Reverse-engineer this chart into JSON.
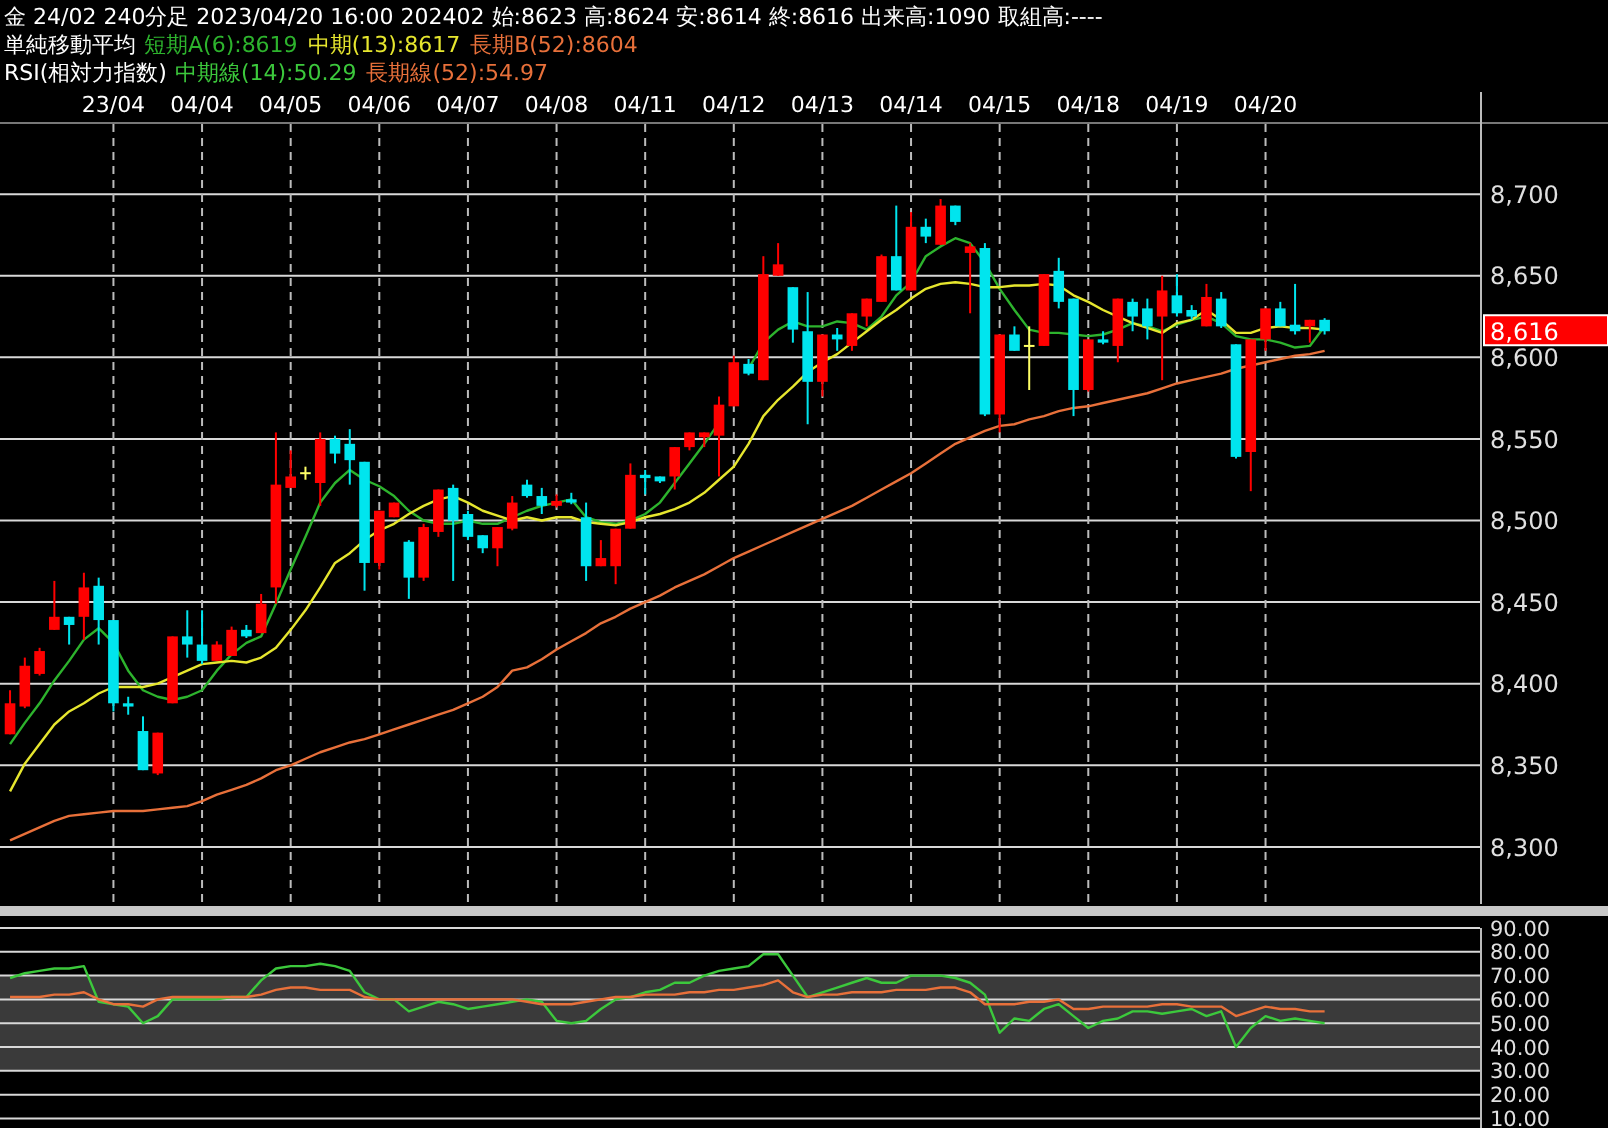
{
  "chart_data": [
    {
      "type": "candlestick",
      "title": "金 24/02 240分足 2023/04/20 16:00 202402 始:8623 高:8624 安:8614 終:8616 出来高:1090 取組高:----",
      "legend_title": "単純移動平均",
      "legend": "top left",
      "grid": true,
      "categories": [
        null,
        null,
        null,
        null,
        null,
        null,
        null,
        "23/04",
        null,
        null,
        null,
        null,
        null,
        "04/04",
        null,
        null,
        null,
        null,
        null,
        "04/05",
        null,
        null,
        null,
        null,
        null,
        "04/06",
        null,
        null,
        null,
        null,
        null,
        "04/07",
        null,
        null,
        null,
        null,
        null,
        "04/08",
        null,
        null,
        null,
        null,
        null,
        "04/11",
        null,
        null,
        null,
        null,
        null,
        "04/12",
        null,
        null,
        null,
        null,
        null,
        "04/13",
        null,
        null,
        null,
        null,
        null,
        "04/14",
        null,
        null,
        null,
        null,
        null,
        "04/15",
        null,
        null,
        null,
        null,
        null,
        "04/18",
        null,
        null,
        null,
        null,
        null,
        "04/19",
        null,
        null,
        null,
        null,
        null,
        "04/20",
        null,
        null,
        null,
        null
      ],
      "ohlc": [
        [
          8369,
          8396,
          8369,
          8388
        ],
        [
          8386,
          8416,
          8385,
          8411
        ],
        [
          8406,
          8422,
          8405,
          8420
        ],
        [
          8433,
          8463,
          8433,
          8441
        ],
        [
          8441,
          8441,
          8424,
          8436
        ],
        [
          8441,
          8468,
          8427,
          8459
        ],
        [
          8460,
          8465,
          8424,
          8439
        ],
        [
          8439,
          8439,
          8383,
          8388
        ],
        [
          8388,
          8392,
          8381,
          8386
        ],
        [
          8371,
          8380,
          8347,
          8347
        ],
        [
          8345,
          8370,
          8344,
          8370
        ],
        [
          8388,
          8429,
          8388,
          8429
        ],
        [
          8429,
          8445,
          8416,
          8424
        ],
        [
          8424,
          8445,
          8412,
          8414
        ],
        [
          8414,
          8426,
          8414,
          8424
        ],
        [
          8417,
          8435,
          8417,
          8433
        ],
        [
          8433,
          8436,
          8428,
          8429
        ],
        [
          8431,
          8455,
          8431,
          8449
        ],
        [
          8459,
          8554,
          8449,
          8522
        ],
        [
          8520,
          8543,
          8520,
          8527
        ],
        [
          8529,
          8533,
          8525,
          8529
        ],
        [
          8523,
          8554,
          8509,
          8550
        ],
        [
          8550,
          8552,
          8535,
          8541
        ],
        [
          8547,
          8556,
          8522,
          8537
        ],
        [
          8536,
          8536,
          8457,
          8474
        ],
        [
          8474,
          8506,
          8470,
          8506
        ],
        [
          8502,
          8511,
          8502,
          8511
        ],
        [
          8487,
          8488,
          8452,
          8465
        ],
        [
          8465,
          8498,
          8463,
          8496
        ],
        [
          8493,
          8519,
          8490,
          8519
        ],
        [
          8520,
          8522,
          8463,
          8500
        ],
        [
          8504,
          8506,
          8488,
          8490
        ],
        [
          8491,
          8491,
          8480,
          8483
        ],
        [
          8483,
          8496,
          8472,
          8496
        ],
        [
          8495,
          8515,
          8494,
          8511
        ],
        [
          8522,
          8525,
          8514,
          8515
        ],
        [
          8515,
          8520,
          8504,
          8509
        ],
        [
          8509,
          8516,
          8508,
          8512
        ],
        [
          8513,
          8517,
          8510,
          8511
        ],
        [
          8502,
          8511,
          8463,
          8472
        ],
        [
          8472,
          8488,
          8472,
          8477
        ],
        [
          8472,
          8495,
          8461,
          8495
        ],
        [
          8495,
          8535,
          8495,
          8528
        ],
        [
          8528,
          8531,
          8516,
          8526
        ],
        [
          8527,
          8527,
          8523,
          8524
        ],
        [
          8527,
          8545,
          8519,
          8545
        ],
        [
          8545,
          8554,
          8543,
          8554
        ],
        [
          8551,
          8554,
          8545,
          8554
        ],
        [
          8552,
          8576,
          8527,
          8571
        ],
        [
          8570,
          8601,
          8570,
          8597
        ],
        [
          8596,
          8599,
          8589,
          8590
        ],
        [
          8586,
          8662,
          8586,
          8651
        ],
        [
          8650,
          8670,
          8650,
          8657
        ],
        [
          8643,
          8643,
          8609,
          8617
        ],
        [
          8616,
          8640,
          8559,
          8585
        ],
        [
          8585,
          8614,
          8576,
          8614
        ],
        [
          8614,
          8618,
          8604,
          8611
        ],
        [
          8607,
          8627,
          8604,
          8627
        ],
        [
          8625,
          8636,
          8619,
          8636
        ],
        [
          8634,
          8663,
          8634,
          8662
        ],
        [
          8662,
          8693,
          8641,
          8641
        ],
        [
          8641,
          8689,
          8641,
          8680
        ],
        [
          8680,
          8685,
          8670,
          8674
        ],
        [
          8669,
          8697,
          8669,
          8693
        ],
        [
          8693,
          8693,
          8681,
          8683
        ],
        [
          8664,
          8670,
          8627,
          8668
        ],
        [
          8667,
          8670,
          8564,
          8565
        ],
        [
          8565,
          8614,
          8554,
          8614
        ],
        [
          8614,
          8619,
          8604,
          8604
        ],
        [
          8607,
          8619,
          8580,
          8607
        ],
        [
          8607,
          8651,
          8607,
          8651
        ],
        [
          8653,
          8661,
          8630,
          8634
        ],
        [
          8636,
          8636,
          8564,
          8580
        ],
        [
          8580,
          8611,
          8579,
          8611
        ],
        [
          8611,
          8616,
          8608,
          8609
        ],
        [
          8607,
          8636,
          8597,
          8636
        ],
        [
          8634,
          8636,
          8616,
          8625
        ],
        [
          8630,
          8636,
          8611,
          8619
        ],
        [
          8625,
          8650,
          8586,
          8641
        ],
        [
          8638,
          8651,
          8625,
          8627
        ],
        [
          8629,
          8632,
          8623,
          8625
        ],
        [
          8619,
          8645,
          8619,
          8637
        ],
        [
          8636,
          8640,
          8618,
          8619
        ],
        [
          8608,
          8608,
          8538,
          8539
        ],
        [
          8542,
          8611,
          8518,
          8611
        ],
        [
          8611,
          8630,
          8604,
          8630
        ],
        [
          8630,
          8634,
          8619,
          8619
        ],
        [
          8620,
          8645,
          8614,
          8616
        ],
        [
          8619,
          8623,
          8609,
          8623
        ],
        [
          8623,
          8624,
          8614,
          8616
        ]
      ],
      "colors": [
        "#ff0000",
        "#ff0000",
        "#ff0000",
        "#ff0000",
        "#00e5ee",
        "#ff0000",
        "#00e5ee",
        "#00e5ee",
        "#00e5ee",
        "#00e5ee",
        "#ff0000",
        "#ff0000",
        "#00e5ee",
        "#00e5ee",
        "#ff0000",
        "#ff0000",
        "#00e5ee",
        "#ff0000",
        "#ff0000",
        "#ff0000",
        "#ffff66",
        "#ff0000",
        "#00e5ee",
        "#00e5ee",
        "#00e5ee",
        "#ff0000",
        "#ff0000",
        "#00e5ee",
        "#ff0000",
        "#ff0000",
        "#00e5ee",
        "#00e5ee",
        "#00e5ee",
        "#ff0000",
        "#ff0000",
        "#00e5ee",
        "#00e5ee",
        "#ff0000",
        "#00e5ee",
        "#00e5ee",
        "#ff0000",
        "#ff0000",
        "#ff0000",
        "#00e5ee",
        "#00e5ee",
        "#ff0000",
        "#ff0000",
        "#ff0000",
        "#ff0000",
        "#ff0000",
        "#00e5ee",
        "#ff0000",
        "#ff0000",
        "#00e5ee",
        "#00e5ee",
        "#ff0000",
        "#00e5ee",
        "#ff0000",
        "#ff0000",
        "#ff0000",
        "#00e5ee",
        "#ff0000",
        "#00e5ee",
        "#ff0000",
        "#00e5ee",
        "#ff0000",
        "#00e5ee",
        "#ff0000",
        "#00e5ee",
        "#ffff66",
        "#ff0000",
        "#00e5ee",
        "#00e5ee",
        "#ff0000",
        "#00e5ee",
        "#ff0000",
        "#00e5ee",
        "#00e5ee",
        "#ff0000",
        "#00e5ee",
        "#00e5ee",
        "#ff0000",
        "#00e5ee",
        "#00e5ee",
        "#ff0000",
        "#ff0000",
        "#00e5ee",
        "#00e5ee",
        "#ff0000",
        "#00e5ee"
      ],
      "series": [
        {
          "name": "短期A(6):8619",
          "color": "#2db32d",
          "type": "line",
          "values": [
            8363,
            8376,
            8388,
            8402,
            8414,
            8427,
            8434,
            8425,
            8408,
            8396,
            8392,
            8390,
            8392,
            8396,
            8408,
            8418,
            8425,
            8429,
            8449,
            8470,
            8490,
            8511,
            8523,
            8531,
            8525,
            8521,
            8515,
            8506,
            8500,
            8498,
            8498,
            8500,
            8498,
            8498,
            8502,
            8506,
            8509,
            8511,
            8513,
            8502,
            8499,
            8498,
            8500,
            8504,
            8511,
            8523,
            8535,
            8547,
            8560,
            null,
            8593,
            8609,
            8617,
            8622,
            8619,
            8619,
            8622,
            8621,
            8617,
            8625,
            8638,
            8646,
            8662,
            8668,
            8673,
            8670,
            8658,
            8642,
            8629,
            8617,
            8615,
            8615,
            8614,
            8613,
            8614,
            8617,
            8621,
            8619,
            8616,
            8620,
            8623,
            8625,
            8621,
            8613,
            8611,
            8611,
            8609,
            8606,
            8607,
            8619
          ]
        },
        {
          "name": "中期(13):8617",
          "color": "#e6e62e",
          "type": "line",
          "values": [
            8334,
            8351,
            8363,
            8375,
            8383,
            8388,
            8394,
            8398,
            8398,
            8398,
            8400,
            8404,
            8408,
            8412,
            8413,
            8414,
            8413,
            8416,
            8422,
            8433,
            8445,
            8459,
            8474,
            8480,
            8488,
            8494,
            8498,
            8504,
            8509,
            8513,
            8515,
            8511,
            8506,
            8503,
            8500,
            8502,
            8500,
            8502,
            8502,
            8499,
            8498,
            8497,
            8499,
            8502,
            8504,
            8507,
            8511,
            8517,
            8525,
            8533,
            8547,
            8564,
            8574,
            8582,
            8591,
            8597,
            8602,
            8609,
            8616,
            8623,
            8629,
            8636,
            8642,
            8645,
            8646,
            8645,
            8643,
            8643,
            8644,
            8644,
            8645,
            8644,
            8638,
            8634,
            8629,
            8625,
            8621,
            8618,
            8615,
            8621,
            8623,
            8629,
            8623,
            8615,
            8615,
            8618,
            8619,
            8618,
            8618,
            8617
          ]
        },
        {
          "name": "長期B(52):8604",
          "color": "#e8703a",
          "type": "line",
          "values": [
            8304,
            8308,
            8312,
            8316,
            8319,
            8320,
            8321,
            8322,
            8322,
            8322,
            8323,
            8324,
            8325,
            8328,
            8332,
            8335,
            8338,
            8342,
            8347,
            8350,
            8354,
            8358,
            8361,
            8364,
            8366,
            8369,
            8372,
            8375,
            8378,
            8381,
            8384,
            8388,
            8392,
            8398,
            8408,
            8410,
            8415,
            8421,
            8426,
            8431,
            8437,
            8441,
            8446,
            8450,
            8454,
            8459,
            8463,
            8467,
            8472,
            8477,
            8481,
            8485,
            8489,
            8493,
            8497,
            8501,
            8505,
            8509,
            8514,
            8519,
            8524,
            8529,
            8535,
            8541,
            8547,
            8551,
            8555,
            8558,
            8559,
            8562,
            8564,
            8567,
            8569,
            8570,
            8572,
            8574,
            8576,
            8578,
            8581,
            8584,
            8586,
            8588,
            8590,
            8593,
            8595,
            8597,
            8599,
            8601,
            8602,
            8604
          ]
        }
      ],
      "ylim": [
        8265,
        8743
      ],
      "yticks": [
        {
          "value": 8300,
          "label": "8,300"
        },
        {
          "value": 8350,
          "label": "8,350"
        },
        {
          "value": 8400,
          "label": "8,400"
        },
        {
          "value": 8450,
          "label": "8,450"
        },
        {
          "value": 8500,
          "label": "8,500"
        },
        {
          "value": 8550,
          "label": "8,550"
        },
        {
          "value": 8600,
          "label": "8,600"
        },
        {
          "value": 8650,
          "label": "8,650"
        },
        {
          "value": 8700,
          "label": "8,700"
        }
      ],
      "annotations": [
        "8,616"
      ]
    },
    {
      "type": "line",
      "legend_title": "RSI(相対力指数)",
      "legend": "top left",
      "grid": true,
      "tick_labels": "y",
      "categories": [
        null,
        null,
        null,
        null,
        null,
        null,
        null,
        null,
        null,
        null,
        null,
        null,
        null,
        null,
        null,
        null,
        null,
        null,
        null,
        null,
        null,
        null,
        null,
        null,
        null,
        null,
        null,
        null,
        null,
        null,
        null,
        null,
        null,
        null,
        null,
        null,
        null,
        null,
        null,
        null,
        null,
        null,
        null,
        null,
        null,
        null,
        null,
        null,
        null,
        null,
        null,
        null,
        null,
        null,
        null,
        null,
        null,
        null,
        null,
        null,
        null,
        null,
        null,
        null,
        null,
        null,
        null,
        null,
        null,
        null,
        null,
        null,
        null,
        null,
        null,
        null,
        null,
        null,
        null,
        null,
        null,
        null,
        null,
        null,
        null,
        null,
        null,
        null,
        null,
        null
      ],
      "series": [
        {
          "name": "中期線(14):50.29",
          "color": "#3cc83c",
          "values": [
            69,
            71,
            72,
            73,
            73,
            74,
            59,
            58,
            57,
            50,
            53,
            60,
            60,
            60,
            60,
            61,
            61,
            68,
            73,
            74,
            74,
            75,
            74,
            72,
            63,
            60,
            60,
            55,
            57,
            59,
            58,
            56,
            57,
            58,
            59,
            60,
            59,
            51,
            50,
            51,
            56,
            60,
            61,
            63,
            64,
            67,
            67,
            70,
            72,
            73,
            74,
            79,
            79,
            70,
            61,
            63,
            65,
            67,
            69,
            67,
            67,
            70,
            70,
            70,
            69,
            67,
            62,
            46,
            52,
            51,
            56,
            58,
            53,
            48,
            51,
            52,
            55,
            55,
            54,
            55,
            56,
            53,
            55,
            40,
            48,
            53,
            51,
            52,
            51,
            50
          ]
        },
        {
          "name": "長期線(52):54.97",
          "color": "#e8703a",
          "values": [
            61,
            61,
            61,
            62,
            62,
            63,
            60,
            58,
            58,
            57,
            60,
            61,
            61,
            61,
            61,
            61,
            61,
            62,
            64,
            65,
            65,
            64,
            64,
            64,
            61,
            60,
            60,
            60,
            60,
            60,
            60,
            60,
            60,
            60,
            60,
            59,
            58,
            58,
            58,
            59,
            60,
            61,
            61,
            62,
            62,
            62,
            63,
            63,
            64,
            64,
            65,
            66,
            68,
            63,
            61,
            62,
            62,
            63,
            63,
            63,
            64,
            64,
            64,
            65,
            65,
            63,
            58,
            58,
            58,
            59,
            59,
            60,
            56,
            56,
            57,
            57,
            57,
            57,
            58,
            58,
            57,
            57,
            57,
            53,
            55,
            57,
            56,
            56,
            55,
            55
          ]
        }
      ],
      "ylim": [
        6,
        90
      ],
      "yticks": [
        {
          "value": 10,
          "label": "10.00"
        },
        {
          "value": 20,
          "label": "20.00"
        },
        {
          "value": 30,
          "label": "30.00"
        },
        {
          "value": 40,
          "label": "40.00"
        },
        {
          "value": 50,
          "label": "50.00"
        },
        {
          "value": 60,
          "label": "60.00"
        },
        {
          "value": 70,
          "label": "70.00"
        },
        {
          "value": 80,
          "label": "80.00"
        },
        {
          "value": 90,
          "label": "90.00"
        }
      ],
      "bands": [
        {
          "axis": "y",
          "from": 30,
          "to": 70,
          "color": "#3a3a3a"
        }
      ]
    }
  ]
}
